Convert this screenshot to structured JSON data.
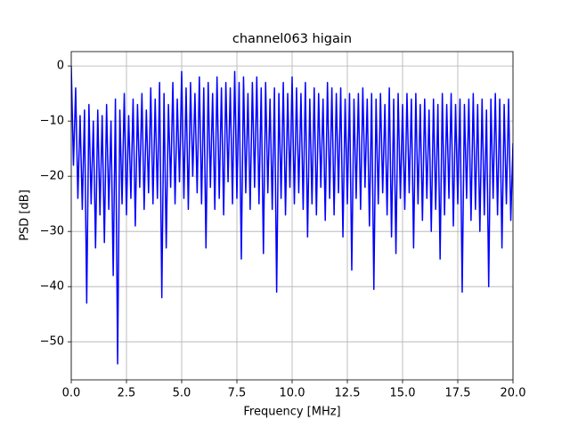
{
  "chart_data": {
    "type": "line",
    "title": "channel063 higain",
    "xlabel": "Frequency [MHz]",
    "ylabel": "PSD [dB]",
    "x": [
      0.0,
      0.1,
      0.2,
      0.3,
      0.4,
      0.5,
      0.6,
      0.7,
      0.8,
      0.9,
      1.0,
      1.1,
      1.2,
      1.3,
      1.4,
      1.5,
      1.6,
      1.7,
      1.8,
      1.9,
      2.0,
      2.1,
      2.2,
      2.3,
      2.4,
      2.5,
      2.6,
      2.7,
      2.8,
      2.9,
      3.0,
      3.1,
      3.2,
      3.3,
      3.4,
      3.5,
      3.6,
      3.7,
      3.8,
      3.9,
      4.0,
      4.1,
      4.2,
      4.3,
      4.4,
      4.5,
      4.6,
      4.7,
      4.8,
      4.9,
      5.0,
      5.1,
      5.2,
      5.3,
      5.4,
      5.5,
      5.6,
      5.7,
      5.8,
      5.9,
      6.0,
      6.1,
      6.2,
      6.3,
      6.4,
      6.5,
      6.6,
      6.7,
      6.8,
      6.9,
      7.0,
      7.1,
      7.2,
      7.3,
      7.4,
      7.5,
      7.6,
      7.7,
      7.8,
      7.9,
      8.0,
      8.1,
      8.2,
      8.3,
      8.4,
      8.5,
      8.6,
      8.7,
      8.8,
      8.9,
      9.0,
      9.1,
      9.2,
      9.3,
      9.4,
      9.5,
      9.6,
      9.7,
      9.8,
      9.9,
      10.0,
      10.1,
      10.2,
      10.3,
      10.4,
      10.5,
      10.6,
      10.7,
      10.8,
      10.9,
      11.0,
      11.1,
      11.2,
      11.3,
      11.4,
      11.5,
      11.6,
      11.7,
      11.8,
      11.9,
      12.0,
      12.1,
      12.2,
      12.3,
      12.4,
      12.5,
      12.6,
      12.7,
      12.8,
      12.9,
      13.0,
      13.1,
      13.2,
      13.3,
      13.4,
      13.5,
      13.6,
      13.7,
      13.8,
      13.9,
      14.0,
      14.1,
      14.2,
      14.3,
      14.4,
      14.5,
      14.6,
      14.7,
      14.8,
      14.9,
      15.0,
      15.1,
      15.2,
      15.3,
      15.4,
      15.5,
      15.6,
      15.7,
      15.8,
      15.9,
      16.0,
      16.1,
      16.2,
      16.3,
      16.4,
      16.5,
      16.6,
      16.7,
      16.8,
      16.9,
      17.0,
      17.1,
      17.2,
      17.3,
      17.4,
      17.5,
      17.6,
      17.7,
      17.8,
      17.9,
      18.0,
      18.1,
      18.2,
      18.3,
      18.4,
      18.5,
      18.6,
      18.7,
      18.8,
      18.9,
      19.0,
      19.1,
      19.2,
      19.3,
      19.4,
      19.5,
      19.6,
      19.7,
      19.8,
      19.9,
      20.0
    ],
    "series": [
      {
        "name": "channel063",
        "color": "#0000ff",
        "values": [
          0,
          -18,
          -4,
          -24,
          -9,
          -26,
          -8,
          -43,
          -7,
          -25,
          -10,
          -33,
          -8,
          -27,
          -9,
          -32,
          -7,
          -26,
          -10,
          -38,
          -6,
          -54,
          -8,
          -25,
          -5,
          -27,
          -9,
          -24,
          -6,
          -29,
          -7,
          -22,
          -5,
          -26,
          -8,
          -23,
          -4,
          -25,
          -6,
          -24,
          -3,
          -42,
          -5,
          -33,
          -7,
          -22,
          -3,
          -25,
          -6,
          -21,
          -1,
          -24,
          -4,
          -26,
          -3,
          -20,
          -5,
          -23,
          -2,
          -25,
          -4,
          -33,
          -3,
          -22,
          -5,
          -26,
          -2,
          -24,
          -4,
          -27,
          -3,
          -21,
          -4,
          -25,
          -1,
          -24,
          -3,
          -35,
          -2,
          -23,
          -5,
          -26,
          -3,
          -22,
          -2,
          -25,
          -4,
          -34,
          -3,
          -23,
          -6,
          -26,
          -4,
          -41,
          -5,
          -24,
          -3,
          -27,
          -5,
          -22,
          -2,
          -25,
          -4,
          -23,
          -5,
          -26,
          -3,
          -31,
          -6,
          -25,
          -4,
          -27,
          -5,
          -22,
          -6,
          -28,
          -3,
          -24,
          -4,
          -27,
          -5,
          -23,
          -4,
          -31,
          -6,
          -25,
          -5,
          -37,
          -6,
          -24,
          -5,
          -26,
          -4,
          -22,
          -6,
          -29,
          -5,
          -40.5,
          -6,
          -25,
          -5,
          -23,
          -7,
          -27,
          -4,
          -31,
          -6,
          -34,
          -5,
          -24,
          -7,
          -26,
          -5,
          -23,
          -6,
          -33,
          -5,
          -25,
          -7,
          -28,
          -6,
          -24,
          -8,
          -30,
          -6,
          -26,
          -7,
          -35,
          -5,
          -27,
          -7,
          -24,
          -5,
          -29,
          -7,
          -25,
          -6,
          -41,
          -7,
          -24,
          -6,
          -28,
          -5,
          -26,
          -7,
          -30,
          -6,
          -27,
          -8,
          -40,
          -6,
          -24,
          -5,
          -27,
          -6,
          -33,
          -7,
          -25,
          -6,
          -28,
          -14
        ]
      }
    ],
    "xlim": [
      0,
      20
    ],
    "ylim": [
      -56.9,
      2.6
    ],
    "xticks": [
      {
        "value": 0,
        "label": "0.0"
      },
      2.5,
      {
        "value": 5,
        "label": "5.0"
      },
      7.5,
      {
        "value": 10,
        "label": "10.0"
      },
      12.5,
      {
        "value": 15,
        "label": "15.0"
      },
      17.5,
      {
        "value": 20,
        "label": "20.0"
      }
    ],
    "yticks": [
      {
        "value": -50,
        "label": "−50"
      },
      {
        "value": -40,
        "label": "−40"
      },
      {
        "value": -30,
        "label": "−30"
      },
      {
        "value": -20,
        "label": "−20"
      },
      {
        "value": -10,
        "label": "−10"
      },
      0
    ],
    "grid": true
  }
}
